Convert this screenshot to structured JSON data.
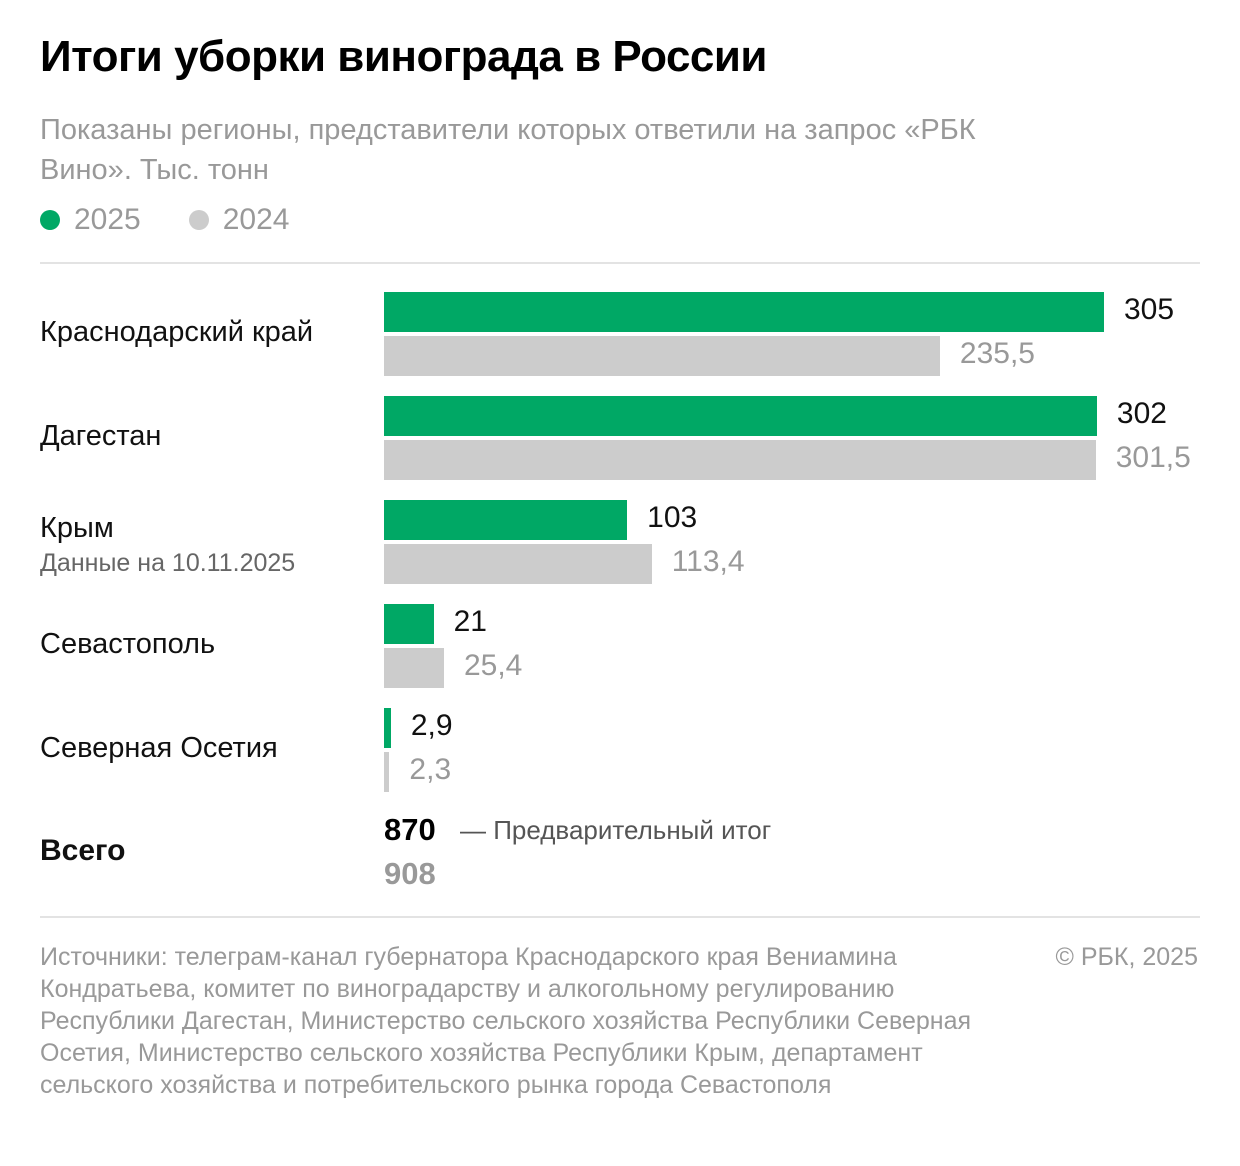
{
  "title": "Итоги уборки винограда в России",
  "subtitle": "Показаны регионы, представители которых ответили на запрос «РБК Вино». Тыс. тонн",
  "chart_data": {
    "type": "bar",
    "orientation": "horizontal",
    "categories": [
      "Краснодарский край",
      "Дагестан",
      "Крым",
      "Севастополь",
      "Северная Осетия"
    ],
    "category_notes": [
      "",
      "",
      "Данные на 10.11.2025",
      "",
      ""
    ],
    "series": [
      {
        "name": "2025",
        "color": "#00a865",
        "values": [
          305,
          302,
          103,
          21,
          2.9
        ],
        "labels": [
          "305",
          "302",
          "103",
          "21",
          "2,9"
        ]
      },
      {
        "name": "2024",
        "color": "#cccccc",
        "values": [
          235.5,
          301.5,
          113.4,
          25.4,
          2.3
        ],
        "labels": [
          "235,5",
          "301,5",
          "113,4",
          "25,4",
          "2,3"
        ]
      }
    ],
    "xlim": [
      0,
      305
    ],
    "grid": false,
    "legend": "top-left",
    "totals": {
      "label": "Всего",
      "value_2025": "870",
      "note_2025": "— Предварительный итог",
      "value_2024": "908"
    }
  },
  "footer": {
    "source": "Источники: телеграм-канал губернатора Краснодарского края Вениамина Кондратьева, комитет по виноградарству и алкогольному регулированию Республики Дагестан, Министерство сельского хозяйства Республики Северная Осетия, Министерство сельского хозяйства Республики Крым, департамент сельского хозяйства и потребительского рынка города Севастополя",
    "copyright": "© РБК, 2025"
  }
}
